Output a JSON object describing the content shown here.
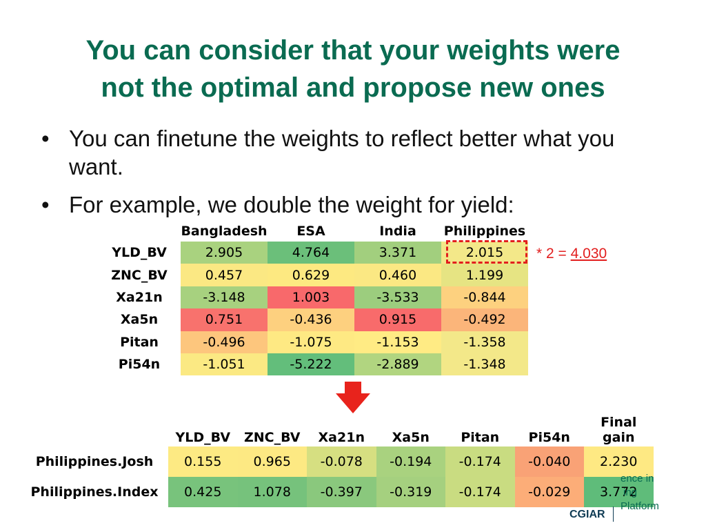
{
  "slide": {
    "title_line1": "You can consider that your weights were",
    "title_line2": "not the optimal and propose new ones",
    "bullets": [
      "You can finetune the weights to reflect better what you want.",
      "For example, we double the weight for yield:"
    ]
  },
  "weights_table": {
    "columns": [
      "Bangladesh",
      "ESA",
      "India",
      "Philippines"
    ],
    "rows": [
      {
        "label": "YLD_BV",
        "values": [
          "2.905",
          "4.764",
          "3.371",
          "2.015"
        ],
        "colors": [
          "#a9d27f",
          "#6bbf7a",
          "#a2cf7e",
          "#f3e889"
        ]
      },
      {
        "label": "ZNC_BV",
        "values": [
          "0.457",
          "0.629",
          "0.460",
          "1.199"
        ],
        "colors": [
          "#fbe883",
          "#fde981",
          "#fbe883",
          "#e6e483"
        ]
      },
      {
        "label": "Xa21n",
        "values": [
          "-3.148",
          "1.003",
          "-3.533",
          "-0.844"
        ],
        "colors": [
          "#a7d17f",
          "#f8696b",
          "#9ccd7e",
          "#fdd17f"
        ]
      },
      {
        "label": "Xa5n",
        "values": [
          "0.751",
          "-0.436",
          "0.915",
          "-0.492"
        ],
        "colors": [
          "#f8726d",
          "#fdd07f",
          "#f86b6b",
          "#fbb57a"
        ]
      },
      {
        "label": "Pitan",
        "values": [
          "-0.496",
          "-1.075",
          "-1.153",
          "-1.358"
        ],
        "colors": [
          "#fdc67d",
          "#fee983",
          "#ffeb84",
          "#f3e889"
        ]
      },
      {
        "label": "Pi54n",
        "values": [
          "-1.051",
          "-5.222",
          "-2.889",
          "-1.348"
        ],
        "colors": [
          "#fbe983",
          "#63be7b",
          "#b1d580",
          "#f3e889"
        ]
      }
    ]
  },
  "annotation": {
    "prefix": "* 2 = ",
    "value": "4.030"
  },
  "gains_table": {
    "columns": [
      "YLD_BV",
      "ZNC_BV",
      "Xa21n",
      "Xa5n",
      "Pitan",
      "Pi54n",
      "Final gain"
    ],
    "rows": [
      {
        "label": "Philippines.Josh",
        "values": [
          "0.155",
          "0.965",
          "-0.078",
          "-0.194",
          "-0.174",
          "-0.040",
          "2.230"
        ],
        "colors": [
          "#fdea83",
          "#fde983",
          "#d6df81",
          "#a9d27f",
          "#c9dc81",
          "#f9a276",
          "#fee983"
        ]
      },
      {
        "label": "Philippines.Index",
        "values": [
          "0.425",
          "1.078",
          "-0.397",
          "-0.319",
          "-0.174",
          "-0.029",
          "3.772"
        ],
        "colors": [
          "#78c37c",
          "#76c27c",
          "#8ac87d",
          "#a5d07f",
          "#c9dc81",
          "#fcad78",
          "#5fbc7a"
        ]
      }
    ]
  },
  "logo": {
    "fragment_line1": "ence in",
    "fragment_line2": "ing",
    "fragment_line3": "Platform",
    "org": "CGIAR"
  },
  "colors": {
    "title": "#0a6b51",
    "annotation": "#e21e1e",
    "arrow": "#e8231c"
  }
}
